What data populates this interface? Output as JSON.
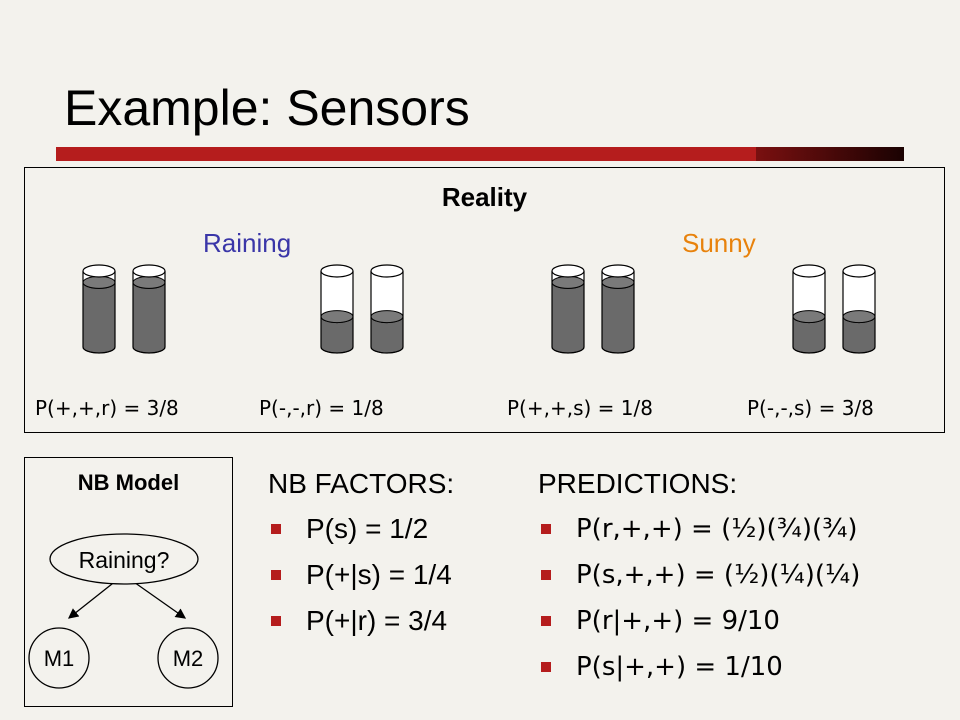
{
  "slide": {
    "title": "Example: Sensors"
  },
  "reality": {
    "title": "Reality",
    "raining_label": "Raining",
    "sunny_label": "Sunny",
    "probs": [
      "P(+,+,r) = 3/8",
      "P(-,-,r) = 1/8",
      "P(+,+,s) = 1/8",
      "P(-,-,s) = 3/8"
    ]
  },
  "nb_model": {
    "title": "NB Model",
    "root": "Raining?",
    "child1": "M1",
    "child2": "M2"
  },
  "factors": {
    "heading": "NB FACTORS:",
    "items": [
      "P(s) = 1/2",
      "P(+|s) = 1/4",
      "P(+|r) = 3/4"
    ]
  },
  "predictions": {
    "heading": "PREDICTIONS:",
    "items": [
      "P(r,+,+) = (½)(¾)(¾)",
      "P(s,+,+) = (½)(¼)(¼)",
      "P(r|+,+) = 9/10",
      "P(s|+,+) = 1/10"
    ]
  },
  "colors": {
    "accent_red": "#b51d1d",
    "raining": "#3a36a8",
    "sunny": "#e8820c",
    "cylinder_fill": "#6a6a6a"
  },
  "cylinders": [
    {
      "group": "raining-plus",
      "fill": [
        0.85,
        0.85
      ]
    },
    {
      "group": "raining-minus",
      "fill": [
        0.4,
        0.4
      ]
    },
    {
      "group": "sunny-plus",
      "fill": [
        0.85,
        0.85
      ]
    },
    {
      "group": "sunny-minus",
      "fill": [
        0.4,
        0.4
      ]
    }
  ]
}
